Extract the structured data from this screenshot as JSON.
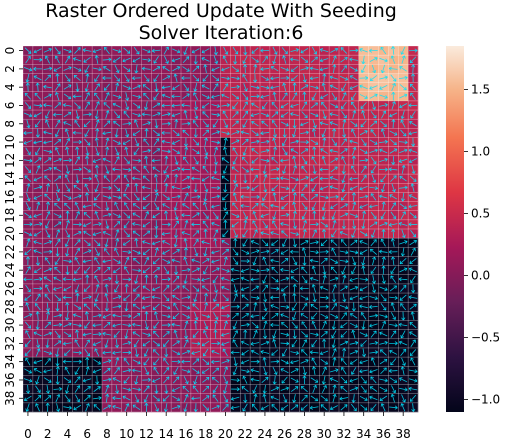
{
  "chart_data": {
    "type": "heatmap",
    "title": [
      "Raster Ordered Update With Seeding",
      "Solver Iteration:6"
    ],
    "grid": {
      "rows": 40,
      "cols": 40
    },
    "x_tick_labels": [
      "0",
      "2",
      "4",
      "6",
      "8",
      "10",
      "12",
      "14",
      "16",
      "18",
      "20",
      "22",
      "24",
      "26",
      "28",
      "30",
      "32",
      "34",
      "36",
      "38"
    ],
    "y_tick_labels": [
      "0",
      "2",
      "4",
      "6",
      "8",
      "10",
      "12",
      "14",
      "16",
      "18",
      "20",
      "22",
      "24",
      "26",
      "28",
      "30",
      "32",
      "34",
      "36",
      "38"
    ],
    "colorbar": {
      "colormap": "rocket",
      "vmin": -1.1,
      "vmax": 1.85,
      "ticks": [
        -1.0,
        -0.5,
        0.0,
        0.5,
        1.0,
        1.5
      ],
      "tick_labels": [
        "−1.0",
        "−0.5",
        "0.0",
        "0.5",
        "1.0",
        "1.5"
      ]
    },
    "background_value": 0.05,
    "regions": [
      {
        "rows": [
          0,
          21
        ],
        "cols": [
          20,
          40
        ],
        "value": 0.42
      },
      {
        "rows": [
          21,
          40
        ],
        "cols": [
          21,
          40
        ],
        "value": -1.05
      },
      {
        "rows": [
          0,
          6
        ],
        "cols": [
          34,
          39
        ],
        "value": 1.55
      },
      {
        "rows": [
          34,
          40
        ],
        "cols": [
          0,
          8
        ],
        "value": -1.05
      },
      {
        "rows": [
          10,
          21
        ],
        "cols": [
          20,
          21
        ],
        "value": -1.05
      },
      {
        "rows": [
          6,
          22
        ],
        "cols": [
          14,
          20
        ],
        "value": 0.18
      },
      {
        "rows": [
          28,
          34
        ],
        "cols": [
          17,
          21
        ],
        "value": 0.28
      }
    ],
    "overlay": {
      "type": "vector-arrows",
      "color": "#00e5ff"
    }
  }
}
